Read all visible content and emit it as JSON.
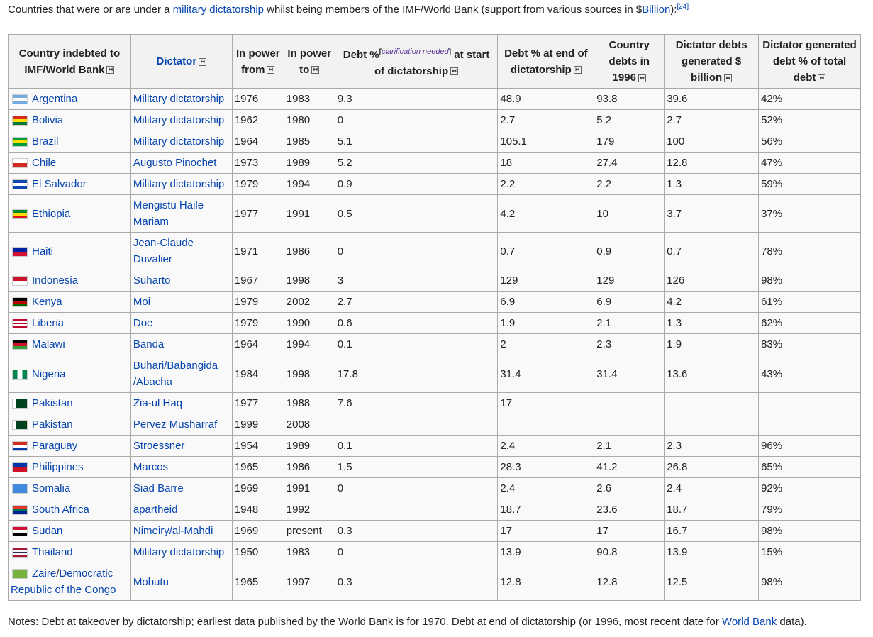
{
  "intro": {
    "before": "Countries that were or are under a ",
    "link": "military dictatorship",
    "after": " whilst being members of the IMF/World Bank (support from various sources in $",
    "link2": "Billion",
    "end": "):",
    "ref": "[24]"
  },
  "headers": {
    "country": "Country indebted to IMF/World Bank",
    "dictator": "Dictator",
    "from": "In power from",
    "to": "In power to",
    "debt_start_a": "Debt %",
    "clarification": "clarification needed",
    "debt_start_b": " at start of dictatorship",
    "debt_end": "Debt % at end of dictatorship",
    "debts_1996": "Country debts in 1996",
    "dictator_debts": "Dictator debts generated $ billion",
    "dictator_pct": "Dictator generated debt % of total debt",
    "sort_icon": "sort-icon"
  },
  "rows": [
    {
      "country": "Argentina",
      "dictator": "Military dictatorship",
      "from": "1976",
      "to": "1983",
      "start": "9.3",
      "end": "48.9",
      "d1996": "93.8",
      "gen": "39.6",
      "pct": "42%",
      "flag": [
        "#74acdf",
        "#ffffff",
        "#74acdf"
      ]
    },
    {
      "country": "Bolivia",
      "dictator": "Military dictatorship",
      "from": "1962",
      "to": "1980",
      "start": "0",
      "end": "2.7",
      "d1996": "5.2",
      "gen": "2.7",
      "pct": "52%",
      "flag": [
        "#d52b1e",
        "#f9e300",
        "#007934"
      ]
    },
    {
      "country": "Brazil",
      "dictator": "Military dictatorship",
      "from": "1964",
      "to": "1985",
      "start": "5.1",
      "end": "105.1",
      "d1996": "179",
      "gen": "100",
      "pct": "56%",
      "flag": [
        "#009c3b",
        "#ffdf00",
        "#009c3b"
      ]
    },
    {
      "country": "Chile",
      "dictator": "Augusto Pinochet",
      "from": "1973",
      "to": "1989",
      "start": "5.2",
      "end": "18",
      "d1996": "27.4",
      "gen": "12.8",
      "pct": "47%",
      "flag": [
        "#ffffff",
        "#d52b1e"
      ]
    },
    {
      "country": "El Salvador",
      "dictator": "Military dictatorship",
      "from": "1979",
      "to": "1994",
      "start": "0.9",
      "end": "2.2",
      "d1996": "2.2",
      "gen": "1.3",
      "pct": "59%",
      "flag": [
        "#0f47af",
        "#ffffff",
        "#0f47af"
      ]
    },
    {
      "country": "Ethiopia",
      "dictator": "Mengistu Haile Mariam",
      "from": "1977",
      "to": "1991",
      "start": "0.5",
      "end": "4.2",
      "d1996": "10",
      "gen": "3.7",
      "pct": "37%",
      "flag": [
        "#078930",
        "#fcdd09",
        "#da121a"
      ]
    },
    {
      "country": "Haiti",
      "dictator": "Jean-Claude Duvalier",
      "from": "1971",
      "to": "1986",
      "start": "0",
      "end": "0.7",
      "d1996": "0.9",
      "gen": "0.7",
      "pct": "78%",
      "flag": [
        "#00209f",
        "#d21034"
      ]
    },
    {
      "country": "Indonesia",
      "dictator": "Suharto",
      "from": "1967",
      "to": "1998",
      "start": "3",
      "end": "129",
      "d1996": "129",
      "gen": "126",
      "pct": "98%",
      "flag": [
        "#ce1126",
        "#ffffff"
      ]
    },
    {
      "country": "Kenya",
      "dictator": "Moi",
      "from": "1979",
      "to": "2002",
      "start": "2.7",
      "end": "6.9",
      "d1996": "6.9",
      "gen": "4.2",
      "pct": "61%",
      "flag": [
        "#000000",
        "#bb0000",
        "#006600"
      ]
    },
    {
      "country": "Liberia",
      "dictator": "Doe",
      "from": "1979",
      "to": "1990",
      "start": "0.6",
      "end": "1.9",
      "d1996": "2.1",
      "gen": "1.3",
      "pct": "62%",
      "flag": [
        "#bf0a30",
        "#ffffff",
        "#bf0a30",
        "#ffffff",
        "#bf0a30"
      ]
    },
    {
      "country": "Malawi",
      "dictator": "Banda",
      "from": "1964",
      "to": "1994",
      "start": "0.1",
      "end": "2",
      "d1996": "2.3",
      "gen": "1.9",
      "pct": "83%",
      "flag": [
        "#000000",
        "#ce1126",
        "#339e35"
      ]
    },
    {
      "country": "Nigeria",
      "dictator": "Buhari/Babangida /Abacha",
      "from": "1984",
      "to": "1998",
      "start": "17.8",
      "end": "31.4",
      "d1996": "31.4",
      "gen": "13.6",
      "pct": "43%",
      "flag": [
        "#008751",
        "#ffffff",
        "#008751"
      ],
      "vertical": true
    },
    {
      "country": "Pakistan",
      "dictator": "Zia-ul Haq",
      "from": "1977",
      "to": "1988",
      "start": "7.6",
      "end": "17",
      "d1996": "",
      "gen": "",
      "pct": "",
      "flag": [
        "#ffffff",
        "#01411c",
        "#01411c",
        "#01411c"
      ],
      "vertical": true
    },
    {
      "country": "Pakistan",
      "dictator": "Pervez Musharraf",
      "from": "1999",
      "to": "2008",
      "start": "",
      "end": "",
      "d1996": "",
      "gen": "",
      "pct": "",
      "flag": [
        "#ffffff",
        "#01411c",
        "#01411c",
        "#01411c"
      ],
      "vertical": true
    },
    {
      "country": "Paraguay",
      "dictator": "Stroessner",
      "from": "1954",
      "to": "1989",
      "start": "0.1",
      "end": "2.4",
      "d1996": "2.1",
      "gen": "2.3",
      "pct": "96%",
      "flag": [
        "#d52b1e",
        "#ffffff",
        "#0038a8"
      ]
    },
    {
      "country": "Philippines",
      "dictator": "Marcos",
      "from": "1965",
      "to": "1986",
      "start": "1.5",
      "end": "28.3",
      "d1996": "41.2",
      "gen": "26.8",
      "pct": "65%",
      "flag": [
        "#0038a8",
        "#ce1126"
      ]
    },
    {
      "country": "Somalia",
      "dictator": "Siad Barre",
      "from": "1969",
      "to": "1991",
      "start": "0",
      "end": "2.4",
      "d1996": "2.6",
      "gen": "2.4",
      "pct": "92%",
      "flag": [
        "#4189dd",
        "#4189dd"
      ]
    },
    {
      "country": "South Africa",
      "dictator": "apartheid",
      "from": "1948",
      "to": "1992",
      "start": "",
      "end": "18.7",
      "d1996": "23.6",
      "gen": "18.7",
      "pct": "79%",
      "flag": [
        "#de3831",
        "#007a4d",
        "#002395"
      ]
    },
    {
      "country": "Sudan",
      "dictator": "Nimeiry/al-Mahdi",
      "from": "1969",
      "to": "present",
      "start": "0.3",
      "end": "17",
      "d1996": "17",
      "gen": "16.7",
      "pct": "98%",
      "flag": [
        "#d21034",
        "#ffffff",
        "#000000"
      ]
    },
    {
      "country": "Thailand",
      "dictator": "Military dictatorship",
      "from": "1950",
      "to": "1983",
      "start": "0",
      "end": "13.9",
      "d1996": "90.8",
      "gen": "13.9",
      "pct": "15%",
      "flag": [
        "#a51931",
        "#f4f5f8",
        "#2d2a4a",
        "#f4f5f8",
        "#a51931"
      ]
    },
    {
      "country": "Zaire/Democratic Republic of the Congo",
      "dictator": "Mobutu",
      "from": "1965",
      "to": "1997",
      "start": "0.3",
      "end": "12.8",
      "d1996": "12.8",
      "gen": "12.5",
      "pct": "98%",
      "flag": [
        "#78b13f",
        "#78b13f"
      ]
    }
  ],
  "notes": {
    "text": "Notes: Debt at takeover by dictatorship; earliest data published by the World Bank is for 1970. Debt at end of dictatorship (or 1996, most recent date for ",
    "link": "World Bank",
    "end": " data)."
  },
  "link_color": "#0645ad"
}
